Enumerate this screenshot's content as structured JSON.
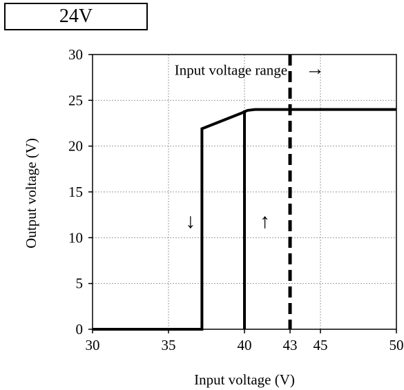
{
  "badge": {
    "label": "24V"
  },
  "chart_data": {
    "type": "line",
    "xlabel": "Input voltage (V)",
    "ylabel": "Output voltage (V)",
    "xlim": [
      30,
      50
    ],
    "ylim": [
      0,
      30
    ],
    "x_ticks": [
      30,
      35,
      40,
      43,
      45,
      50
    ],
    "y_ticks": [
      0,
      5,
      10,
      15,
      20,
      25,
      30
    ],
    "grid": true,
    "series": [
      {
        "x": [
          30,
          37.2,
          37.2,
          39.8,
          40.2,
          40.7,
          50
        ],
        "y": [
          0,
          0,
          21.9,
          23.6,
          23.9,
          24,
          24
        ]
      },
      {
        "x": [
          40.0,
          40.0
        ],
        "y": [
          0,
          23.9
        ]
      }
    ],
    "reference_line": {
      "x": 43,
      "style": "dashed"
    },
    "annotations": [
      {
        "text": "Input voltage range",
        "x": 35.4,
        "y": 28.3
      },
      {
        "text": "→",
        "x": 44.0,
        "y": 28.3
      },
      {
        "text": "↓",
        "x": 36.1,
        "y": 11.6
      },
      {
        "text": "↑",
        "x": 41.0,
        "y": 11.6
      }
    ]
  }
}
